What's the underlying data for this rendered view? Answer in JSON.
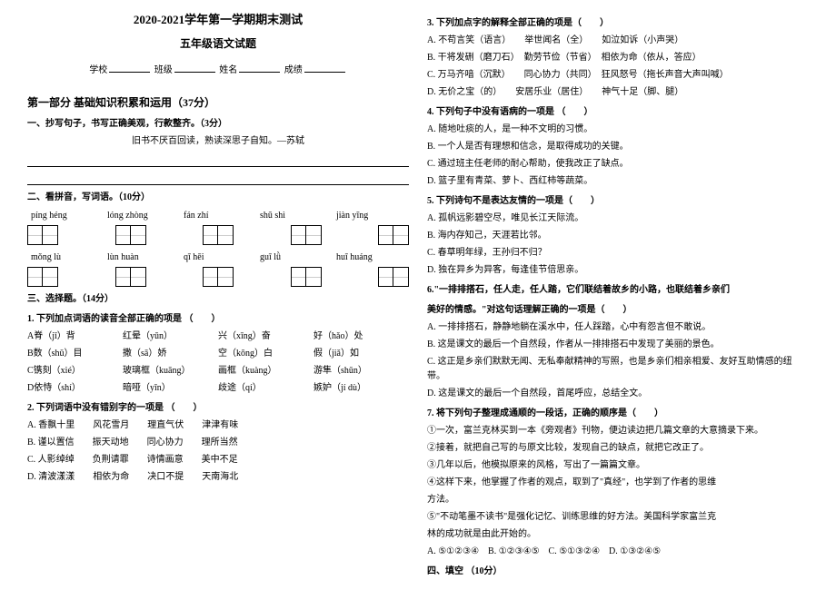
{
  "header": {
    "title_main": "2020-2021学年第一学期期末测试",
    "title_sub": "五年级语文试题",
    "info_labels": [
      "学校",
      "班级",
      "姓名",
      "成绩"
    ]
  },
  "part1": {
    "title": "第一部分  基础知识积累和运用（37分）",
    "s1": {
      "title": "一、抄写句子，书写正确美观，行款整齐。（3分）",
      "sentence": "旧书不厌百回读，熟读深思子自知。—苏轼"
    },
    "s2": {
      "title": "二、看拼音，写词语。（10分）",
      "row1_pinyin": [
        "píng héng",
        "lóng zhòng",
        "fán zhí",
        "shū shì",
        "jiàn yīng"
      ],
      "row1_cells": [
        2,
        2,
        2,
        2,
        2
      ],
      "row2_pinyin": [
        "mǒng lù",
        "lùn huàn",
        "qī hēi",
        "guī lǜ",
        "huī huáng"
      ],
      "row2_cells": [
        2,
        2,
        2,
        2,
        2
      ]
    },
    "s3": {
      "title": "三、选择题。（14分）",
      "q1": {
        "title": "1. 下列加点词语的读音全部正确的项是 （　　）",
        "rows": [
          [
            "A脊（jǐ）背",
            "红晕（yūn）",
            "兴（xīng）奋",
            "好（hǎo）处"
          ],
          [
            "B数（shǔ）目",
            "撒（sā）娇",
            "空（kōng）白",
            "假（jiǎ）如"
          ],
          [
            "C镌刻（xié）",
            "玻璃框（kuāng）",
            "画框（kuàng）",
            "游隼（shǔn）"
          ],
          [
            "D依恃（shí）",
            "暗哑（yīn）",
            "歧途（qí）",
            "嫉妒（jí dù）"
          ]
        ]
      },
      "q2": {
        "title": "2. 下列词语中没有错别字的一项是 （　　）",
        "opts": [
          "A. 香飘十里　　风花雪月　　理直气伏　　津津有味",
          "B. 谨以置信　　振天动地　　同心协力　　理所当然",
          "C. 人影绰绰　　负荆请罪　　诗情画意　　美中不足",
          "D. 清波漾漾　　相依为命　　决口不提　　天南海北"
        ]
      }
    }
  },
  "part_right": {
    "q3": {
      "title": "3. 下列加点字的解释全部正确的项是（　　）",
      "opts": [
        "A. 不苟言笑（语言）　　举世闻名（全）　　如泣如诉（小声哭）",
        "B. 干将发硎（磨刀石）　勤劳节俭（节省）　相依为命（依从，答应）",
        "C. 万马齐喑（沉默）　　同心协力（共同）　狂风怒号（拖长声音大声叫喊）",
        "D. 无价之宝（的）　　安居乐业（居住）　　神气十足（脚、腿）"
      ]
    },
    "q4": {
      "title": "4. 下列句子中没有语病的一项是 （　　）",
      "opts": [
        "A. 随地吐痰的人，是一种不文明的习惯。",
        "B. 一个人是否有理想和信念，是取得成功的关键。",
        "C. 通过班主任老师的耐心帮助，使我改正了缺点。",
        "D. 篮子里有青菜、萝卜、西红柿等蔬菜。"
      ]
    },
    "q5": {
      "title": "5. 下列诗句不是表达友情的一项是（　　）",
      "opts": [
        "A. 孤帆远影碧空尽，唯见长江天际流。",
        "B. 海内存知己，天涯若比邻。",
        "C. 春草明年绿，王孙归不归？",
        "D. 独在异乡为异客，每逢佳节倍思亲。"
      ]
    },
    "q6": {
      "title_line1": "6.\"一排排搭石，任人走，任人踏，它们联结着故乡的小路，也联结着乡亲们",
      "title_line2": "美好的情感。\"对这句话理解正确的一项是（　　）",
      "opts": [
        "A. 一排排搭石，静静地躺在溪水中，任人踩踏，心中有怨言但不敢说。",
        "B. 这是课文的最后一个自然段，作者从一排排搭石中发现了美丽的景色。",
        "C. 这正是乡亲们默默无闻、无私奉献精神的写照，也是乡亲们相亲相爱、友好互助情感的纽带。",
        "D. 这是课文的最后一个自然段，首尾呼应，总结全文。"
      ]
    },
    "q7": {
      "title": "7. 将下列句子整理成通顺的一段话，正确的顺序是（　　）",
      "items": [
        "①一次，富兰克林买到一本《旁观者》刊物，便边读边把几篇文章的大意摘录下来。",
        "②接着，就把自己写的与原文比较，发现自己的缺点，就把它改正了。",
        "③几年以后，他模拟原来的风格，写出了一篇篇文章。",
        "④这样下来，他掌握了作者的观点，取到了\"真经\"，也学到了作者的思维",
        "方法。",
        "⑤\"不动笔墨不读书\"是强化记忆、训练思维的好方法。美国科学家富兰克",
        "林的成功就是由此开始的。"
      ],
      "choices": "A. ⑤①②③④　B. ①②③④⑤　C. ⑤①③②④　D. ①③②④⑤"
    },
    "s4_title": "四、填空 （10分）"
  }
}
